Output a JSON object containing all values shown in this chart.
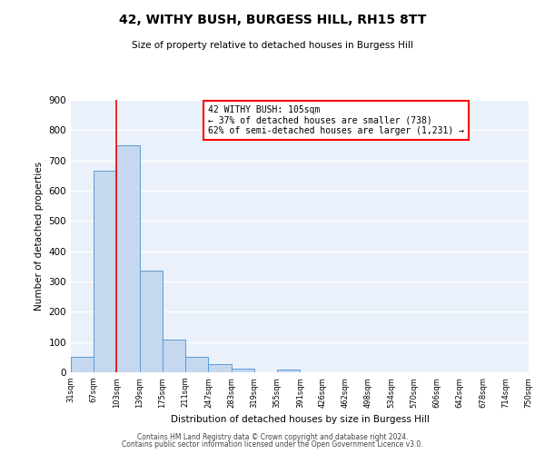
{
  "title": "42, WITHY BUSH, BURGESS HILL, RH15 8TT",
  "subtitle": "Size of property relative to detached houses in Burgess Hill",
  "xlabel": "Distribution of detached houses by size in Burgess Hill",
  "ylabel": "Number of detached properties",
  "bin_edges": [
    31,
    67,
    103,
    139,
    175,
    211,
    247,
    283,
    319,
    355,
    391,
    426,
    462,
    498,
    534,
    570,
    606,
    642,
    678,
    714,
    750
  ],
  "bin_counts": [
    52,
    665,
    750,
    335,
    108,
    52,
    27,
    13,
    0,
    8,
    0,
    0,
    0,
    0,
    0,
    0,
    0,
    0,
    0,
    0
  ],
  "bar_color": "#c5d8f0",
  "bar_edge_color": "#5b9bd5",
  "vline_x": 103,
  "vline_color": "red",
  "annotation_text": "42 WITHY BUSH: 105sqm\n← 37% of detached houses are smaller (738)\n62% of semi-detached houses are larger (1,231) →",
  "annotation_box_color": "white",
  "annotation_box_edge_color": "red",
  "ylim": [
    0,
    900
  ],
  "yticks": [
    0,
    100,
    200,
    300,
    400,
    500,
    600,
    700,
    800,
    900
  ],
  "tick_labels": [
    "31sqm",
    "67sqm",
    "103sqm",
    "139sqm",
    "175sqm",
    "211sqm",
    "247sqm",
    "283sqm",
    "319sqm",
    "355sqm",
    "391sqm",
    "426sqm",
    "462sqm",
    "498sqm",
    "534sqm",
    "570sqm",
    "606sqm",
    "642sqm",
    "678sqm",
    "714sqm",
    "750sqm"
  ],
  "background_color": "#eaf1fb",
  "grid_color": "white",
  "footer1": "Contains HM Land Registry data © Crown copyright and database right 2024.",
  "footer2": "Contains public sector information licensed under the Open Government Licence v3.0."
}
